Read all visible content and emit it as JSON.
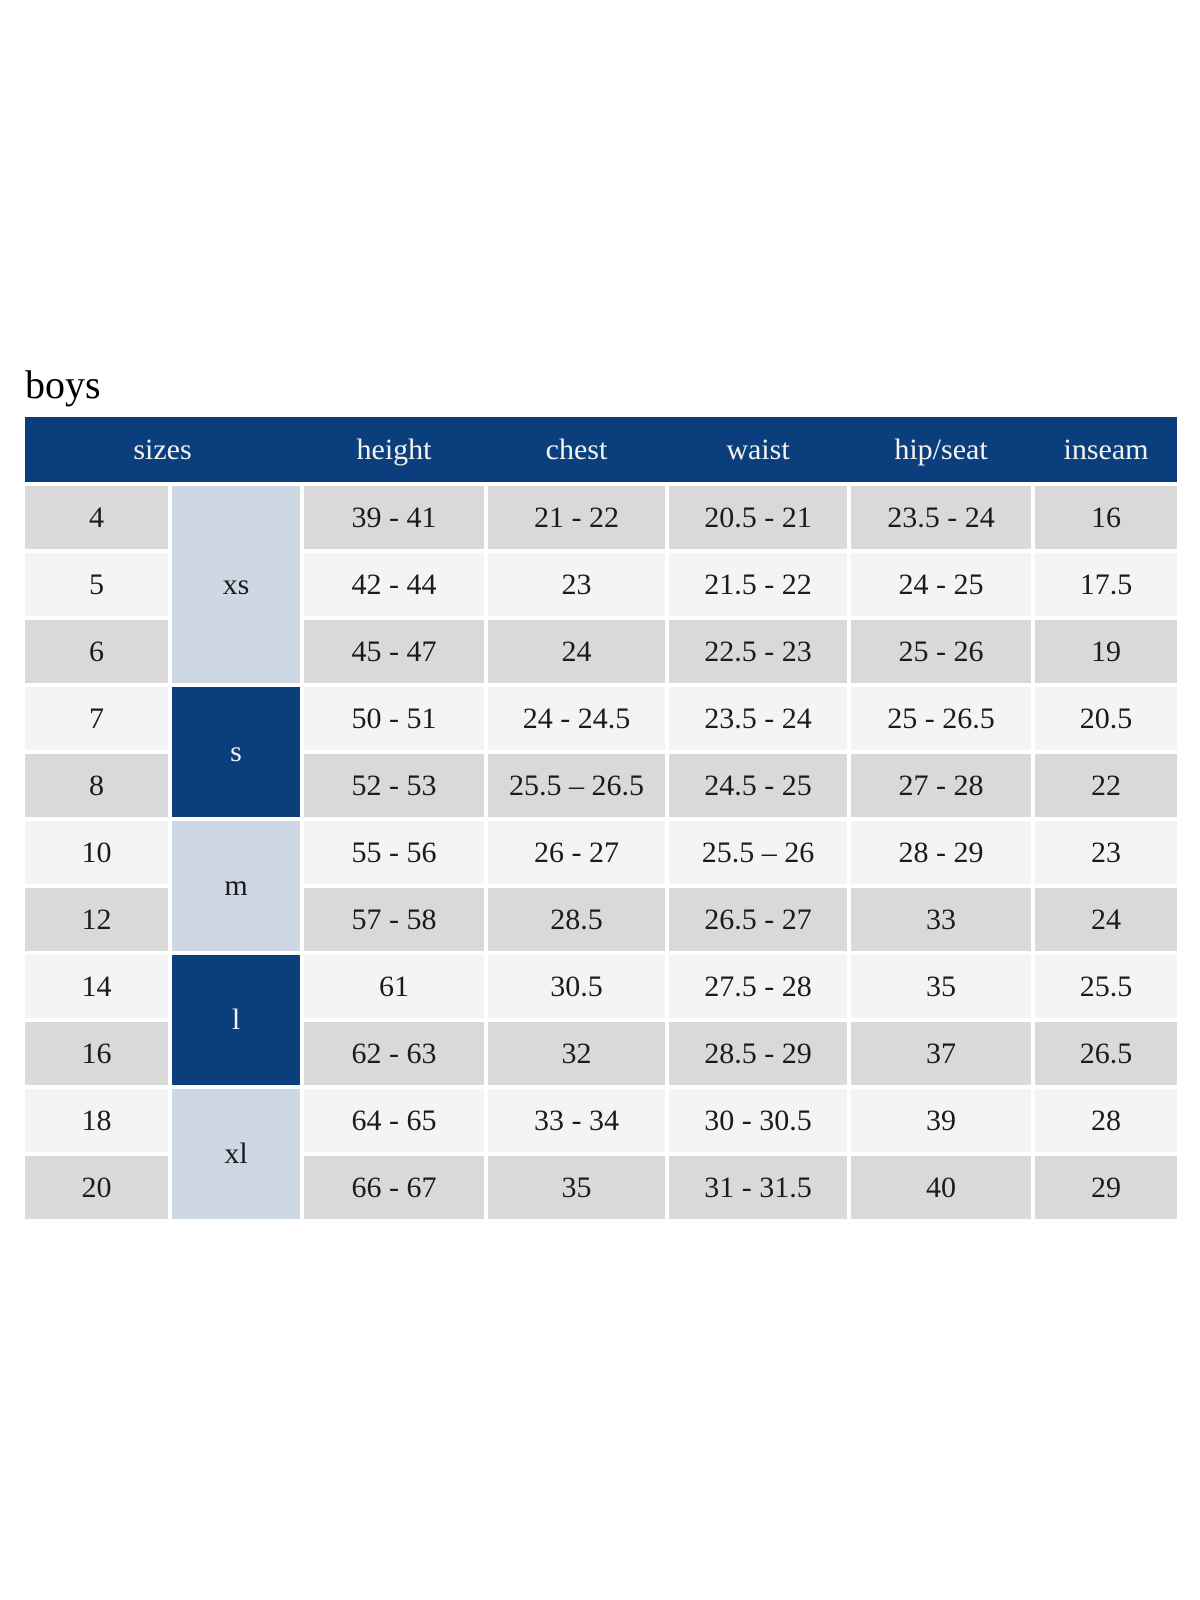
{
  "page": {
    "title": "boys"
  },
  "colors": {
    "navy": "#0b3e7d",
    "light_blue": "#cdd8e4",
    "row_gray": "#d9d9d9",
    "row_light": "#f4f4f4",
    "header_text": "#f3f2ef",
    "body_text": "#1b1b1b"
  },
  "table": {
    "headers": [
      "sizes",
      "height",
      "chest",
      "waist",
      "hip/seat",
      "inseam"
    ],
    "groups": [
      {
        "label": "xs",
        "span_rows": 3,
        "style": "light"
      },
      {
        "label": "s",
        "span_rows": 2,
        "style": "dark"
      },
      {
        "label": "m",
        "span_rows": 2,
        "style": "light"
      },
      {
        "label": "l",
        "span_rows": 2,
        "style": "dark"
      },
      {
        "label": "xl",
        "span_rows": 2,
        "style": "light"
      }
    ],
    "rows": [
      {
        "size": "4",
        "height": "39 - 41",
        "chest": "21 - 22",
        "waist": "20.5 - 21",
        "hip_seat": "23.5 - 24",
        "inseam": "16"
      },
      {
        "size": "5",
        "height": "42 - 44",
        "chest": "23",
        "waist": "21.5 - 22",
        "hip_seat": "24 - 25",
        "inseam": "17.5"
      },
      {
        "size": "6",
        "height": "45 - 47",
        "chest": "24",
        "waist": "22.5 - 23",
        "hip_seat": "25 - 26",
        "inseam": "19"
      },
      {
        "size": "7",
        "height": "50 - 51",
        "chest": "24 - 24.5",
        "waist": "23.5 - 24",
        "hip_seat": "25 - 26.5",
        "inseam": "20.5"
      },
      {
        "size": "8",
        "height": "52 - 53",
        "chest": "25.5 – 26.5",
        "waist": "24.5 - 25",
        "hip_seat": "27 - 28",
        "inseam": "22"
      },
      {
        "size": "10",
        "height": "55 - 56",
        "chest": "26 - 27",
        "waist": "25.5 – 26",
        "hip_seat": "28 - 29",
        "inseam": "23"
      },
      {
        "size": "12",
        "height": "57 - 58",
        "chest": "28.5",
        "waist": "26.5 - 27",
        "hip_seat": "33",
        "inseam": "24"
      },
      {
        "size": "14",
        "height": "61",
        "chest": "30.5",
        "waist": "27.5 - 28",
        "hip_seat": "35",
        "inseam": "25.5"
      },
      {
        "size": "16",
        "height": "62 - 63",
        "chest": "32",
        "waist": "28.5 - 29",
        "hip_seat": "37",
        "inseam": "26.5"
      },
      {
        "size": "18",
        "height": "64 - 65",
        "chest": "33 - 34",
        "waist": "30 - 30.5",
        "hip_seat": "39",
        "inseam": "28"
      },
      {
        "size": "20",
        "height": "66 - 67",
        "chest": "35",
        "waist": "31 - 31.5",
        "hip_seat": "40",
        "inseam": "29"
      }
    ]
  }
}
